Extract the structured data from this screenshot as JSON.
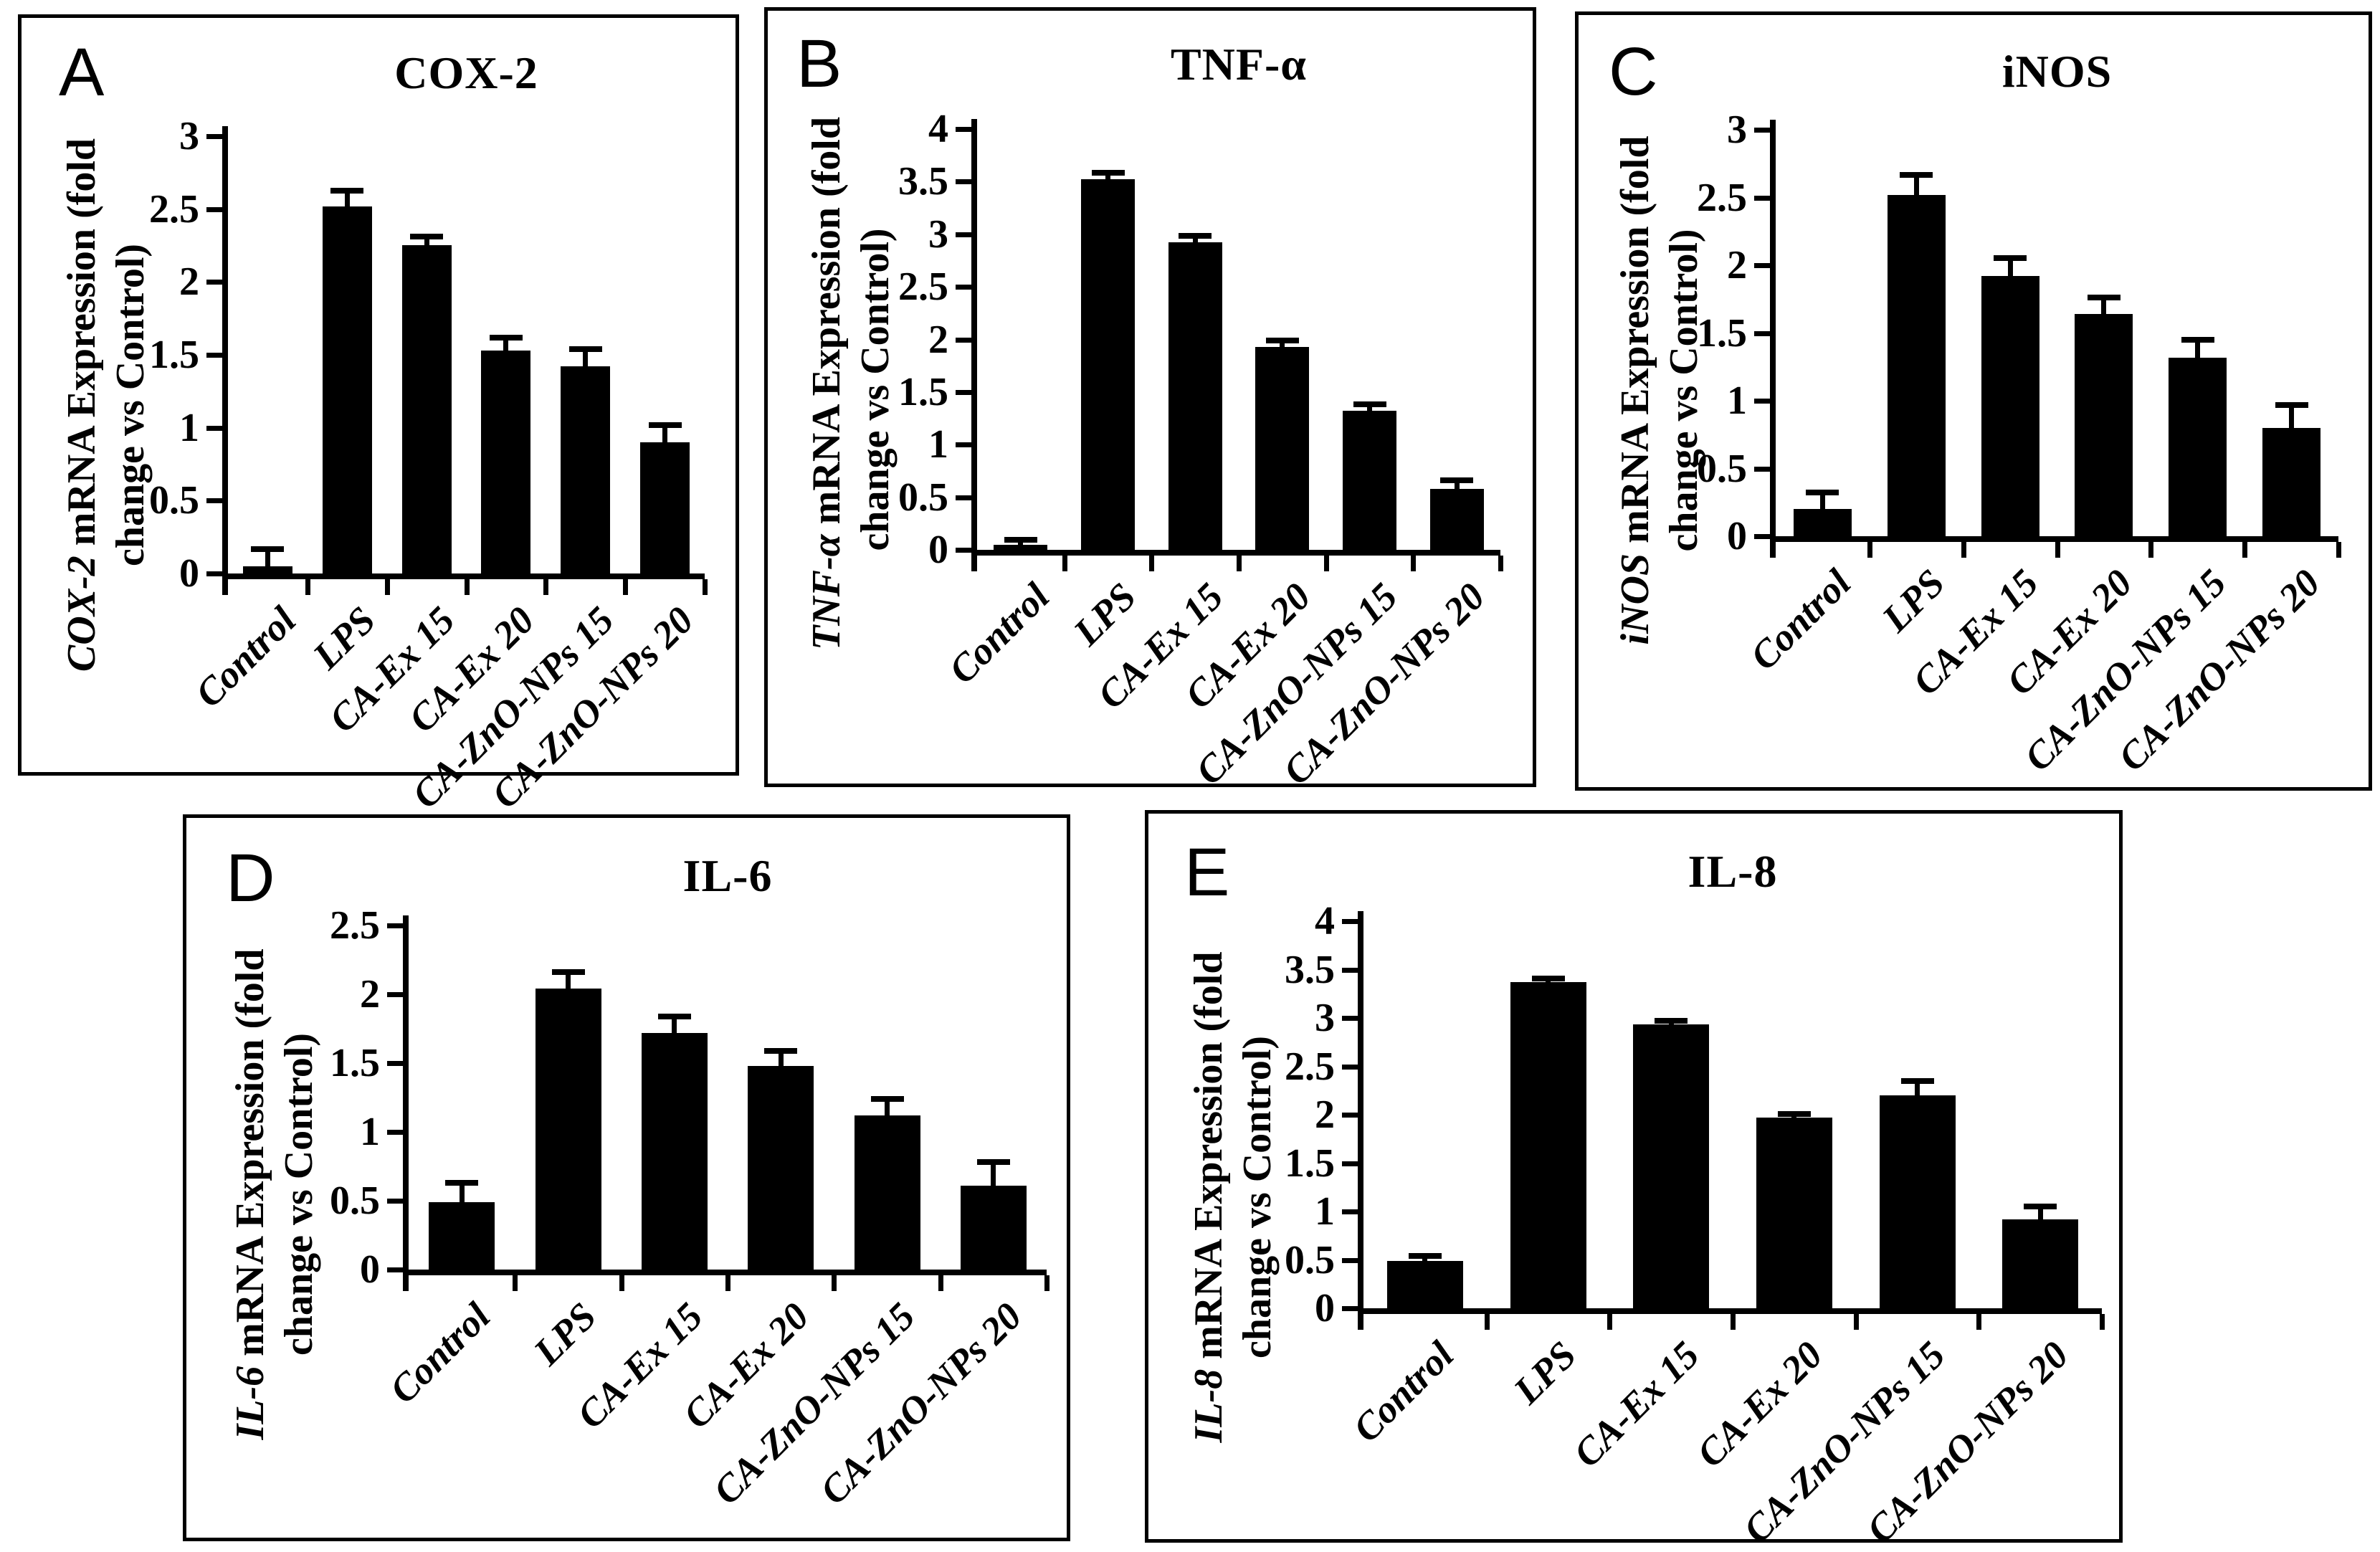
{
  "colors": {
    "bar": "#000000",
    "axis": "#000000",
    "background": "#ffffff",
    "panel_border": "#000000",
    "text": "#000000"
  },
  "categories": [
    "Control",
    "LPS",
    "CA-Ex 15",
    "CA-Ex 20",
    "CA-ZnO-NPs 15",
    "CA-ZnO-NPs 20"
  ],
  "chart_data": [
    {
      "type": "bar",
      "panel": "A",
      "title": "COX-2",
      "ylabel": "COX-2 mRNA Expression (fold change vs Control)",
      "ylabel_gene": "COX-2",
      "ylabel_line1_rest": " mRNA Expression (fold",
      "ylabel_line2": "change vs Control)",
      "xlabel": "",
      "categories": [
        "Control",
        "LPS",
        "CA-Ex 15",
        "CA-Ex 20",
        "CA-ZnO-NPs 15",
        "CA-ZnO-NPs 20"
      ],
      "values": [
        0.05,
        2.52,
        2.25,
        1.53,
        1.42,
        0.9
      ],
      "errors": [
        0.12,
        0.11,
        0.06,
        0.09,
        0.12,
        0.12
      ],
      "ylim": [
        0,
        3
      ],
      "yticks": [
        0,
        0.5,
        1,
        1.5,
        2,
        2.5,
        3
      ],
      "grid": false,
      "legend": null,
      "bar_color": "#000000"
    },
    {
      "type": "bar",
      "panel": "B",
      "title": "TNF-α",
      "ylabel": "TNF-α mRNA Expression (fold change vs Control)",
      "ylabel_gene": "TNF-α",
      "ylabel_line1_rest": " mRNA Expression (fold",
      "ylabel_line2": "change vs Control)",
      "xlabel": "",
      "categories": [
        "Control",
        "LPS",
        "CA-Ex 15",
        "CA-Ex 20",
        "CA-ZnO-NPs 15",
        "CA-ZnO-NPs 20"
      ],
      "values": [
        0.05,
        3.52,
        2.92,
        1.93,
        1.32,
        0.58
      ],
      "errors": [
        0.05,
        0.06,
        0.06,
        0.06,
        0.06,
        0.08
      ],
      "ylim": [
        0,
        4
      ],
      "yticks": [
        0,
        0.5,
        1,
        1.5,
        2,
        2.5,
        3,
        3.5,
        4
      ],
      "grid": false,
      "legend": null,
      "bar_color": "#000000"
    },
    {
      "type": "bar",
      "panel": "C",
      "title": "iNOS",
      "ylabel": "iNOS mRNA Expression (fold change vs Control)",
      "ylabel_gene": "iNOS",
      "ylabel_line1_rest": " mRNA Expression (fold",
      "ylabel_line2": "change vs Control)",
      "xlabel": "",
      "categories": [
        "Control",
        "LPS",
        "CA-Ex 15",
        "CA-Ex 20",
        "CA-ZnO-NPs 15",
        "CA-ZnO-NPs 20"
      ],
      "values": [
        0.2,
        2.52,
        1.92,
        1.64,
        1.32,
        0.8
      ],
      "errors": [
        0.12,
        0.15,
        0.13,
        0.12,
        0.13,
        0.17
      ],
      "ylim": [
        0,
        3
      ],
      "yticks": [
        0,
        0.5,
        1,
        1.5,
        2,
        2.5,
        3
      ],
      "grid": false,
      "legend": null,
      "bar_color": "#000000"
    },
    {
      "type": "bar",
      "panel": "D",
      "title": "IL-6",
      "ylabel": "IL-6 mRNA Expression (fold change vs Control)",
      "ylabel_gene": "IL-6",
      "ylabel_line1_rest": " mRNA Expression (fold",
      "ylabel_line2": "change vs Control)",
      "xlabel": "",
      "categories": [
        "Control",
        "LPS",
        "CA-Ex 15",
        "CA-Ex 20",
        "CA-ZnO-NPs 15",
        "CA-ZnO-NPs 20"
      ],
      "values": [
        0.49,
        2.04,
        1.72,
        1.48,
        1.12,
        0.61
      ],
      "errors": [
        0.14,
        0.12,
        0.12,
        0.11,
        0.12,
        0.17
      ],
      "ylim": [
        0,
        2.5
      ],
      "yticks": [
        0,
        0.5,
        1,
        1.5,
        2,
        2.5
      ],
      "grid": false,
      "legend": null,
      "bar_color": "#000000"
    },
    {
      "type": "bar",
      "panel": "E",
      "title": "IL-8",
      "ylabel": "IL-8 mRNA Expression (fold change vs Control)",
      "ylabel_gene": "IL-8",
      "ylabel_line1_rest": " mRNA Expression (fold",
      "ylabel_line2": "change vs Control)",
      "xlabel": "",
      "categories": [
        "Control",
        "LPS",
        "CA-Ex 15",
        "CA-Ex 20",
        "CA-ZnO-NPs 15",
        "CA-ZnO-NPs 20"
      ],
      "values": [
        0.49,
        3.37,
        2.93,
        1.97,
        2.2,
        0.92
      ],
      "errors": [
        0.05,
        0.04,
        0.04,
        0.04,
        0.15,
        0.13
      ],
      "ylim": [
        0,
        4
      ],
      "yticks": [
        0,
        0.5,
        1,
        1.5,
        2,
        2.5,
        3,
        3.5,
        4
      ],
      "grid": false,
      "legend": null,
      "bar_color": "#000000"
    }
  ]
}
